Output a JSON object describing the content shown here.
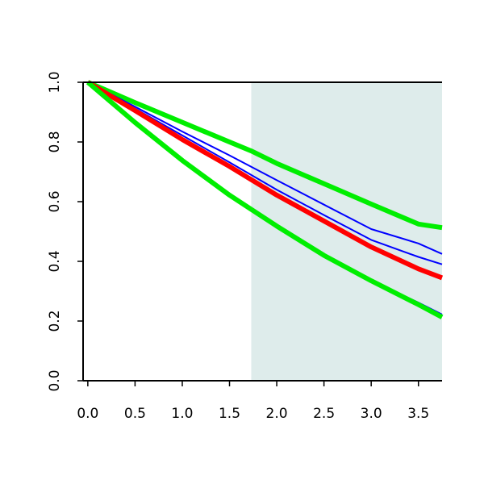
{
  "chart_data": {
    "type": "line",
    "title": "",
    "xlabel": "",
    "ylabel": "",
    "xlim": [
      -0.05,
      3.75
    ],
    "ylim": [
      0.0,
      1.0
    ],
    "x_ticks": [
      "0.0",
      "0.5",
      "1.0",
      "1.5",
      "2.0",
      "2.5",
      "3.0",
      "3.5"
    ],
    "x_tick_values": [
      0.0,
      0.5,
      1.0,
      1.5,
      2.0,
      2.5,
      3.0,
      3.5
    ],
    "y_ticks": [
      "0.0",
      "0.2",
      "0.4",
      "0.6",
      "0.8",
      "1.0"
    ],
    "y_tick_values": [
      0.0,
      0.2,
      0.4,
      0.6,
      0.8,
      1.0
    ],
    "grid": false,
    "legend": "none",
    "shaded_region": {
      "x_start": 1.73,
      "x_end": 3.75,
      "color": "#deeceb"
    },
    "series": [
      {
        "color": "#00ee00",
        "style": "thick",
        "x": [
          0.0,
          0.5,
          1.0,
          1.5,
          1.73,
          2.0,
          2.5,
          3.0,
          3.5,
          3.75
        ],
        "values": [
          1.0,
          0.932,
          0.866,
          0.8,
          0.77,
          0.728,
          0.66,
          0.592,
          0.525,
          0.513
        ]
      },
      {
        "color": "#0000ff",
        "style": "thin",
        "x": [
          0.0,
          0.5,
          1.0,
          1.5,
          2.0,
          2.5,
          3.0,
          3.5,
          3.75
        ],
        "values": [
          1.0,
          0.918,
          0.835,
          0.755,
          0.672,
          0.59,
          0.508,
          0.46,
          0.425
        ]
      },
      {
        "color": "#0000ff",
        "style": "thin",
        "x": [
          0.0,
          0.5,
          1.0,
          1.5,
          2.0,
          2.5,
          3.0,
          3.5,
          3.75
        ],
        "values": [
          1.0,
          0.912,
          0.822,
          0.732,
          0.64,
          0.555,
          0.472,
          0.415,
          0.39
        ]
      },
      {
        "color": "#ff0000",
        "style": "thick",
        "x": [
          0.0,
          0.5,
          1.0,
          1.5,
          2.0,
          2.5,
          3.0,
          3.5,
          3.75
        ],
        "values": [
          1.0,
          0.905,
          0.808,
          0.718,
          0.622,
          0.535,
          0.448,
          0.375,
          0.345
        ]
      },
      {
        "color": "#0000ff",
        "style": "thin",
        "x": [
          0.0,
          0.5,
          1.0,
          1.5,
          2.0,
          2.5,
          3.0,
          3.5,
          3.75
        ],
        "values": [
          1.0,
          0.862,
          0.735,
          0.618,
          0.515,
          0.418,
          0.335,
          0.262,
          0.222
        ]
      },
      {
        "color": "#00ee00",
        "style": "thick",
        "x": [
          0.0,
          0.5,
          1.0,
          1.5,
          2.0,
          2.5,
          3.0,
          3.5,
          3.75
        ],
        "values": [
          1.0,
          0.865,
          0.738,
          0.622,
          0.518,
          0.42,
          0.335,
          0.255,
          0.213
        ]
      }
    ]
  }
}
